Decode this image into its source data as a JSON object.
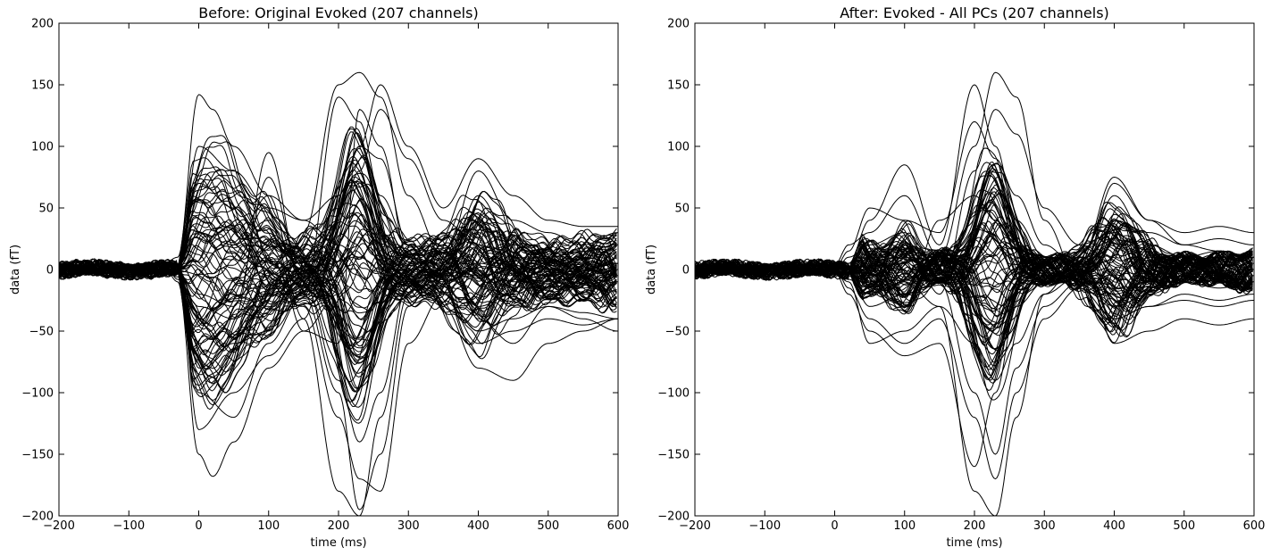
{
  "chart_data": [
    {
      "type": "line",
      "title": "Before: Original Evoked (207 channels)",
      "xlabel": "time (ms)",
      "ylabel": "data (fT)",
      "xlim": [
        -200,
        600
      ],
      "ylim": [
        -200,
        200
      ],
      "xticks": [
        -200,
        -100,
        0,
        100,
        200,
        300,
        400,
        500,
        600
      ],
      "xtick_labels": [
        "−200",
        "−100",
        "0",
        "100",
        "200",
        "300",
        "400",
        "500",
        "600"
      ],
      "yticks": [
        200,
        150,
        100,
        50,
        0,
        -50,
        -100,
        -150,
        -200
      ],
      "ytick_labels": [
        "200",
        "150",
        "100",
        "50",
        "0",
        "−50",
        "−100",
        "−150",
        "−200"
      ],
      "grid": false,
      "line_color": "#000000",
      "channel_count": 207,
      "series": [
        {
          "x": [
            -200,
            -150,
            -100,
            -50,
            -30,
            0,
            20,
            50,
            100,
            150,
            200,
            230,
            260,
            300,
            350,
            400,
            450,
            500,
            550,
            600
          ],
          "y": [
            0,
            3,
            -2,
            5,
            10,
            142,
            130,
            100,
            60,
            40,
            20,
            10,
            0,
            -10,
            -5,
            5,
            0,
            -5,
            0,
            5
          ]
        },
        {
          "x": [
            -200,
            -150,
            -100,
            -50,
            -30,
            0,
            20,
            50,
            100,
            150,
            200,
            230,
            260,
            300,
            350,
            400,
            450,
            500,
            550,
            600
          ],
          "y": [
            0,
            -2,
            3,
            2,
            -10,
            -150,
            -168,
            -140,
            -80,
            -50,
            -20,
            10,
            30,
            10,
            0,
            -5,
            0,
            5,
            0,
            -5
          ]
        },
        {
          "x": [
            -200,
            -150,
            -100,
            -50,
            -30,
            0,
            50,
            100,
            150,
            200,
            230,
            260,
            300,
            350,
            400,
            450,
            500,
            550,
            600
          ],
          "y": [
            5,
            0,
            -3,
            4,
            2,
            -60,
            -40,
            95,
            -20,
            -100,
            -195,
            -150,
            -30,
            10,
            30,
            -10,
            0,
            -5,
            0
          ]
        },
        {
          "x": [
            -200,
            -150,
            -100,
            -50,
            -30,
            0,
            50,
            100,
            150,
            200,
            230,
            260,
            300,
            350,
            400,
            450,
            500,
            550,
            600
          ],
          "y": [
            -3,
            2,
            0,
            -4,
            5,
            -80,
            -60,
            -50,
            30,
            150,
            160,
            140,
            60,
            10,
            80,
            40,
            30,
            20,
            30
          ]
        },
        {
          "x": [
            -200,
            -150,
            -100,
            -50,
            -30,
            0,
            50,
            100,
            150,
            200,
            230,
            260,
            300,
            350,
            400,
            450,
            500,
            550,
            600
          ],
          "y": [
            2,
            -3,
            4,
            0,
            -6,
            -40,
            20,
            60,
            -40,
            -180,
            -200,
            -120,
            -20,
            30,
            -40,
            -60,
            -30,
            -40,
            -50
          ]
        },
        {
          "x": [
            -200,
            -150,
            -100,
            -50,
            -30,
            0,
            50,
            100,
            150,
            200,
            230,
            260,
            300,
            350,
            400,
            450,
            500,
            550,
            600
          ],
          "y": [
            0,
            4,
            -2,
            3,
            0,
            -100,
            -120,
            -60,
            -20,
            140,
            120,
            60,
            20,
            -30,
            -80,
            -90,
            -60,
            -50,
            -40
          ]
        },
        {
          "x": [
            -200,
            -150,
            -100,
            -50,
            -30,
            0,
            50,
            100,
            150,
            200,
            230,
            260,
            300,
            350,
            400,
            450,
            500,
            550,
            600
          ],
          "y": [
            4,
            -1,
            2,
            -2,
            3,
            100,
            80,
            50,
            40,
            60,
            100,
            150,
            100,
            50,
            90,
            60,
            40,
            35,
            35
          ]
        },
        {
          "x": [
            -200,
            -150,
            -100,
            -50,
            -30,
            0,
            50,
            100,
            150,
            200,
            230,
            260,
            300,
            350,
            400,
            450,
            500,
            550,
            600
          ],
          "y": [
            -5,
            3,
            -4,
            6,
            -8,
            -30,
            -40,
            -20,
            -30,
            -120,
            -170,
            -180,
            -60,
            -20,
            -50,
            -40,
            -30,
            -35,
            -40
          ]
        },
        {
          "x": [
            -200,
            -150,
            -100,
            -50,
            -30,
            0,
            50,
            100,
            150,
            200,
            230,
            260,
            300,
            350,
            400,
            450,
            500,
            550,
            600
          ],
          "y": [
            3,
            -2,
            1,
            -1,
            2,
            70,
            50,
            20,
            10,
            40,
            80,
            130,
            90,
            40,
            20,
            10,
            5,
            10,
            5
          ]
        },
        {
          "x": [
            -200,
            -150,
            -100,
            -50,
            -30,
            0,
            50,
            100,
            150,
            200,
            230,
            260,
            300,
            350,
            400,
            450,
            500,
            550,
            600
          ],
          "y": [
            1,
            2,
            -1,
            2,
            -3,
            -20,
            -30,
            75,
            -10,
            -90,
            -140,
            -100,
            -10,
            20,
            -30,
            -20,
            -10,
            -15,
            -10
          ]
        },
        {
          "x": [
            -200,
            -150,
            -100,
            -50,
            -30,
            0,
            50,
            100,
            150,
            200,
            230,
            260,
            300,
            350,
            400,
            450,
            500,
            550,
            600
          ],
          "y": [
            -2,
            1,
            3,
            -3,
            4,
            -130,
            -100,
            -70,
            -40,
            60,
            100,
            90,
            20,
            -20,
            -60,
            -50,
            -40,
            -45,
            -40
          ]
        },
        {
          "x": [
            -200,
            -150,
            -100,
            -50,
            -30,
            0,
            50,
            100,
            150,
            200,
            230,
            260,
            300,
            350,
            400,
            450,
            500,
            550,
            600
          ],
          "y": [
            2,
            0,
            -2,
            1,
            0,
            30,
            20,
            40,
            -50,
            -60,
            130,
            100,
            10,
            -10,
            60,
            20,
            10,
            15,
            20
          ]
        }
      ]
    },
    {
      "type": "line",
      "title": "After: Evoked - All PCs (207 channels)",
      "xlabel": "time (ms)",
      "ylabel": "data (fT)",
      "xlim": [
        -200,
        600
      ],
      "ylim": [
        -200,
        200
      ],
      "xticks": [
        -200,
        -100,
        0,
        100,
        200,
        300,
        400,
        500,
        600
      ],
      "xtick_labels": [
        "−200",
        "−100",
        "0",
        "100",
        "200",
        "300",
        "400",
        "500",
        "600"
      ],
      "yticks": [
        200,
        150,
        100,
        50,
        0,
        -50,
        -100,
        -150,
        -200
      ],
      "ytick_labels": [
        "200",
        "150",
        "100",
        "50",
        "0",
        "−50",
        "−100",
        "−150",
        "−200"
      ],
      "grid": false,
      "line_color": "#000000",
      "channel_count": 207,
      "series": [
        {
          "x": [
            -200,
            -150,
            -100,
            -50,
            0,
            20,
            50,
            100,
            150,
            200,
            230,
            260,
            300,
            350,
            400,
            450,
            500,
            550,
            600
          ],
          "y": [
            0,
            3,
            -2,
            4,
            2,
            5,
            40,
            85,
            20,
            150,
            100,
            40,
            10,
            -5,
            60,
            20,
            10,
            15,
            10
          ]
        },
        {
          "x": [
            -200,
            -150,
            -100,
            -50,
            0,
            20,
            50,
            100,
            150,
            200,
            230,
            260,
            300,
            350,
            400,
            450,
            500,
            550,
            600
          ],
          "y": [
            1,
            -3,
            2,
            -2,
            -3,
            -10,
            -60,
            -50,
            -30,
            -180,
            -200,
            -120,
            -20,
            10,
            -40,
            -30,
            -20,
            -25,
            -20
          ]
        },
        {
          "x": [
            -200,
            -150,
            -100,
            -50,
            0,
            20,
            50,
            100,
            150,
            200,
            230,
            260,
            300,
            350,
            400,
            450,
            500,
            550,
            600
          ],
          "y": [
            -2,
            2,
            3,
            -3,
            4,
            20,
            30,
            60,
            10,
            100,
            160,
            140,
            40,
            -10,
            70,
            40,
            30,
            35,
            30
          ]
        },
        {
          "x": [
            -200,
            -150,
            -100,
            -50,
            0,
            20,
            50,
            100,
            150,
            200,
            230,
            260,
            300,
            350,
            400,
            450,
            500,
            550,
            600
          ],
          "y": [
            3,
            -1,
            -2,
            2,
            -2,
            -20,
            -50,
            -70,
            -60,
            -160,
            -100,
            -30,
            -10,
            20,
            -60,
            -50,
            -40,
            -45,
            -40
          ]
        },
        {
          "x": [
            -200,
            -150,
            -100,
            -50,
            0,
            20,
            50,
            100,
            150,
            200,
            230,
            260,
            300,
            350,
            400,
            450,
            500,
            550,
            600
          ],
          "y": [
            0,
            2,
            -1,
            1,
            1,
            15,
            50,
            40,
            30,
            120,
            90,
            60,
            20,
            0,
            40,
            30,
            20,
            25,
            20
          ]
        },
        {
          "x": [
            -200,
            -150,
            -100,
            -50,
            0,
            20,
            50,
            100,
            150,
            200,
            230,
            260,
            300,
            350,
            400,
            450,
            500,
            550,
            600
          ],
          "y": [
            -1,
            0,
            2,
            -2,
            0,
            -5,
            -30,
            -20,
            -10,
            -100,
            -150,
            -80,
            -30,
            -10,
            -20,
            -10,
            -5,
            -10,
            -5
          ]
        },
        {
          "x": [
            -200,
            -150,
            -100,
            -50,
            0,
            20,
            50,
            100,
            150,
            200,
            230,
            260,
            300,
            350,
            400,
            450,
            500,
            550,
            600
          ],
          "y": [
            2,
            -2,
            1,
            0,
            -1,
            10,
            20,
            30,
            -20,
            80,
            130,
            110,
            50,
            20,
            30,
            10,
            5,
            10,
            5
          ]
        },
        {
          "x": [
            -200,
            -150,
            -100,
            -50,
            0,
            20,
            50,
            100,
            150,
            200,
            230,
            260,
            300,
            350,
            400,
            450,
            500,
            550,
            600
          ],
          "y": [
            -3,
            1,
            -2,
            3,
            2,
            -15,
            -40,
            -60,
            -40,
            -120,
            -170,
            -100,
            -40,
            -15,
            -40,
            -30,
            -25,
            -30,
            -25
          ]
        },
        {
          "x": [
            -200,
            -150,
            -100,
            -50,
            0,
            20,
            50,
            100,
            150,
            200,
            230,
            260,
            300,
            350,
            400,
            450,
            500,
            550,
            600
          ],
          "y": [
            1,
            1,
            -1,
            -1,
            3,
            5,
            10,
            -30,
            40,
            60,
            40,
            20,
            10,
            5,
            75,
            40,
            20,
            15,
            10
          ]
        },
        {
          "x": [
            -200,
            -150,
            -100,
            -50,
            0,
            20,
            50,
            100,
            150,
            200,
            230,
            260,
            300,
            350,
            400,
            450,
            500,
            550,
            600
          ],
          "y": [
            0,
            -1,
            0,
            1,
            -2,
            -8,
            -20,
            -10,
            -30,
            -60,
            -90,
            -60,
            -20,
            -5,
            -30,
            -20,
            -10,
            -15,
            -10
          ]
        }
      ]
    }
  ]
}
